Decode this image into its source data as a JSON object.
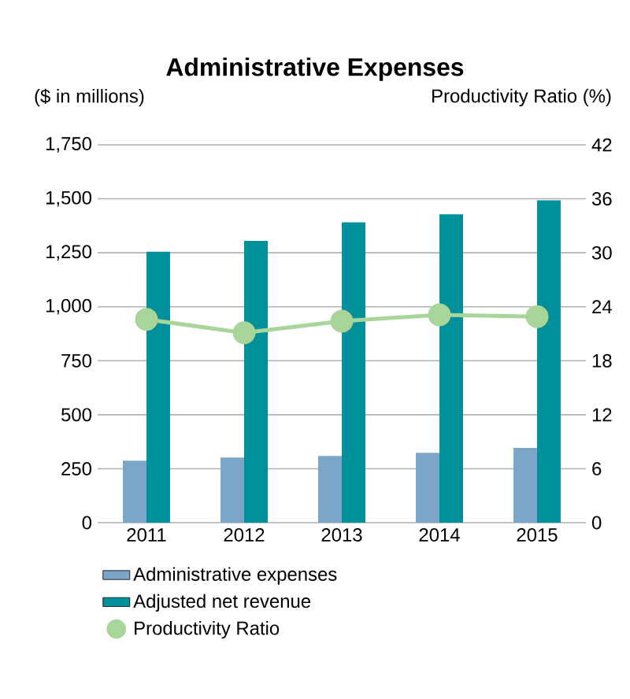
{
  "chart_data": {
    "type": "bar",
    "title": "Administrative Expenses",
    "ylabel": "($ in millions)",
    "y2label": "Productivity Ratio (%)",
    "categories": [
      "2011",
      "2012",
      "2013",
      "2014",
      "2015"
    ],
    "series": [
      {
        "name": "Administrative expenses",
        "color": "#7ba6c7",
        "values": [
          287,
          302,
          309,
          324,
          346
        ]
      },
      {
        "name": "Adjusted net revenue",
        "color": "#00909c",
        "values": [
          1255,
          1305,
          1391,
          1428,
          1493
        ]
      },
      {
        "name": "Productivity Ratio",
        "type": "line",
        "axis": "y2",
        "marker": "circle",
        "color": "#a8d69a",
        "values": [
          22.6,
          21.1,
          22.4,
          23.1,
          22.9
        ]
      }
    ],
    "ylim": [
      0,
      1750
    ],
    "yticks": [
      0,
      250,
      500,
      750,
      {
        "value": 1000,
        "label": "1,000"
      },
      {
        "value": 1250,
        "label": "1,250"
      },
      {
        "value": 1500,
        "label": "1,500"
      },
      {
        "value": 1750,
        "label": "1,750"
      }
    ],
    "y2lim": [
      0,
      42
    ],
    "y2ticks": [
      0,
      6,
      12,
      18,
      24,
      30,
      36,
      42
    ],
    "grid": "y",
    "legend": "bottom"
  }
}
